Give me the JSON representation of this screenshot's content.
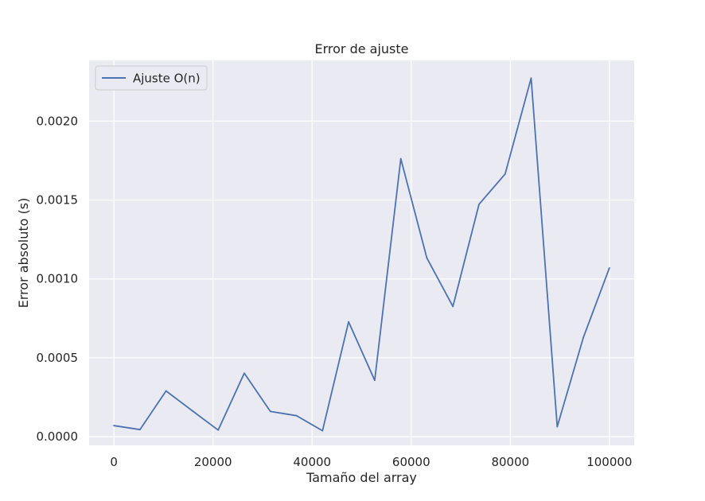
{
  "chart_data": {
    "type": "line",
    "title": "Error de ajuste",
    "xlabel": "Tamaño del array",
    "ylabel": "Error absoluto (s)",
    "xlim": [
      -5000,
      105000
    ],
    "ylim": [
      -5.5e-05,
      0.002385
    ],
    "xticks": [
      0,
      20000,
      40000,
      60000,
      80000,
      100000
    ],
    "xtick_labels": [
      "0",
      "20000",
      "40000",
      "60000",
      "80000",
      "100000"
    ],
    "yticks": [
      0.0,
      0.0005,
      0.001,
      0.0015,
      0.002
    ],
    "ytick_labels": [
      "0.0000",
      "0.0005",
      "0.0010",
      "0.0015",
      "0.0020"
    ],
    "grid": true,
    "legend_position": "top-left",
    "background": "#eaeaf2",
    "series": [
      {
        "name": "Ajuste O(n)",
        "color": "#4c72b0",
        "x": [
          0,
          5263,
          10526,
          15789,
          21053,
          26316,
          31579,
          36842,
          42105,
          47368,
          52632,
          57895,
          63158,
          68421,
          73684,
          78947,
          84211,
          89474,
          94737,
          100000
        ],
        "y": [
          7e-05,
          4.5e-05,
          0.00029,
          0.000165,
          4.2e-05,
          0.000402,
          0.00016,
          0.000133,
          3.8e-05,
          0.000728,
          0.000357,
          0.001762,
          0.001133,
          0.000825,
          0.001473,
          0.001665,
          0.002273,
          6.3e-05,
          0.000628,
          0.00107
        ]
      }
    ]
  }
}
